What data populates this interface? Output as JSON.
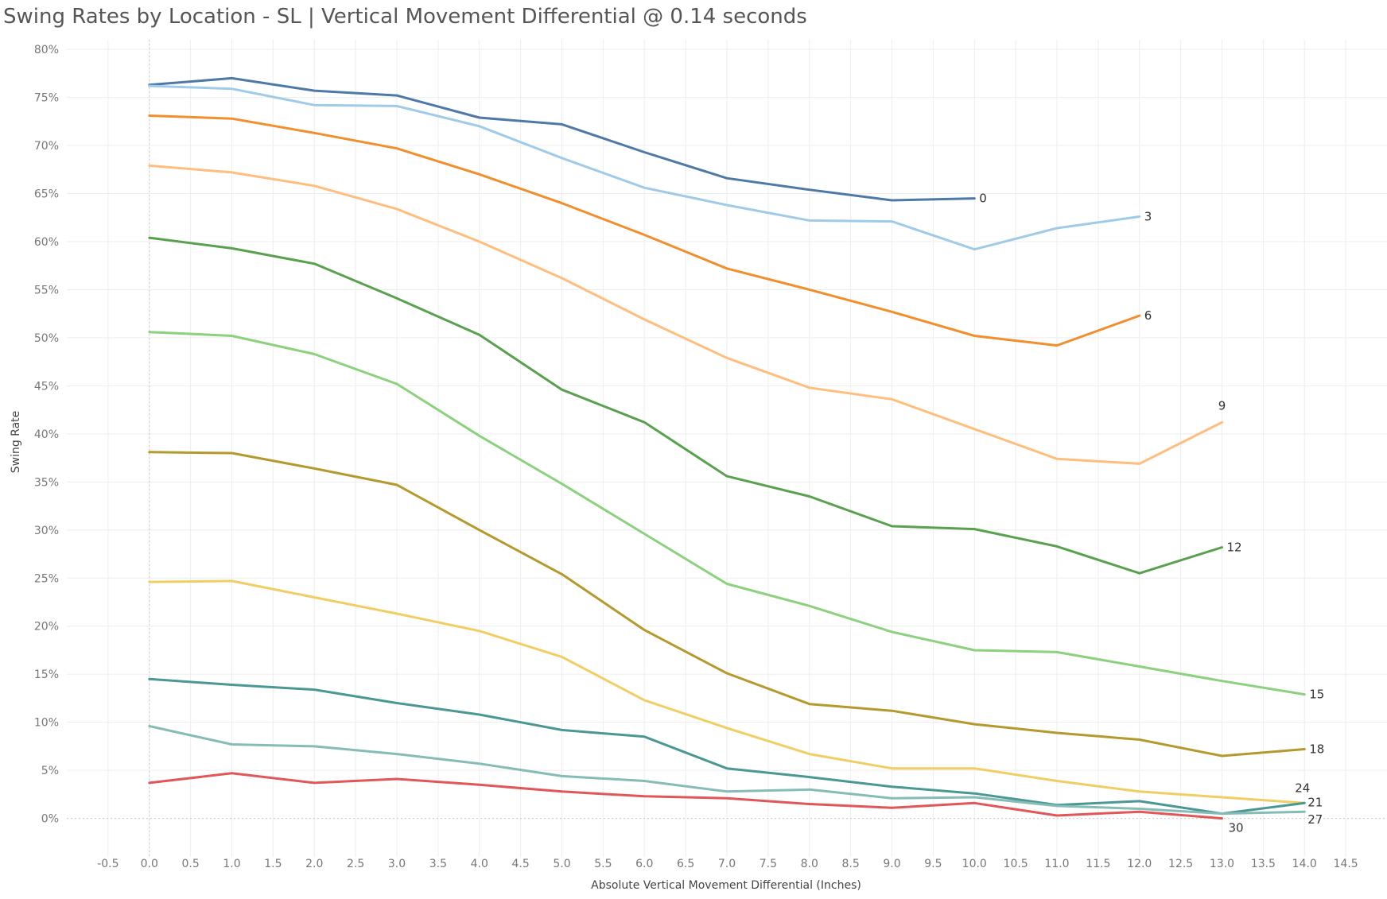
{
  "chart_data": {
    "type": "line",
    "title": "Swing Rates by Location - SL | Vertical Movement Differential @ 0.14 seconds",
    "xlabel": "Absolute Vertical Movement Differential (Inches)",
    "ylabel": "Swing Rate",
    "xlim": [
      -1.0,
      15.0
    ],
    "ylim": [
      -4,
      81
    ],
    "x_ticks": [
      "-0.5",
      "0.0",
      "0.5",
      "1.0",
      "1.5",
      "2.0",
      "2.5",
      "3.0",
      "3.5",
      "4.0",
      "4.5",
      "5.0",
      "5.5",
      "6.0",
      "6.5",
      "7.0",
      "7.5",
      "8.0",
      "8.5",
      "9.0",
      "9.5",
      "10.0",
      "10.5",
      "11.0",
      "11.5",
      "12.0",
      "12.5",
      "13.0",
      "13.5",
      "14.0",
      "14.5"
    ],
    "y_ticks": [
      "0%",
      "5%",
      "10%",
      "15%",
      "20%",
      "25%",
      "30%",
      "35%",
      "40%",
      "45%",
      "50%",
      "55%",
      "60%",
      "65%",
      "70%",
      "75%",
      "80%"
    ],
    "grid": true,
    "series": [
      {
        "name": "0",
        "color": "#4e79a7",
        "x": [
          0,
          1,
          2,
          3,
          4,
          5,
          6,
          7,
          8,
          9,
          10
        ],
        "values": [
          76.3,
          77.0,
          75.7,
          75.2,
          72.9,
          72.2,
          69.3,
          66.6,
          65.4,
          64.3,
          64.5
        ]
      },
      {
        "name": "3",
        "color": "#a0cbe8",
        "x": [
          0,
          1,
          2,
          3,
          4,
          5,
          6,
          7,
          8,
          9,
          10,
          11,
          12
        ],
        "values": [
          76.2,
          75.9,
          74.2,
          74.1,
          72.0,
          68.7,
          65.6,
          63.8,
          62.2,
          62.1,
          59.2,
          61.4,
          62.6
        ]
      },
      {
        "name": "6",
        "color": "#f28e2b",
        "x": [
          0,
          1,
          2,
          3,
          4,
          5,
          6,
          7,
          8,
          9,
          10,
          11,
          12
        ],
        "values": [
          73.1,
          72.8,
          71.3,
          69.7,
          67.0,
          64.0,
          60.7,
          57.2,
          55.0,
          52.7,
          50.2,
          49.2,
          52.3
        ]
      },
      {
        "name": "9",
        "color": "#ffbe7d",
        "x": [
          0,
          1,
          2,
          3,
          4,
          5,
          6,
          7,
          8,
          9,
          10,
          11,
          12,
          13
        ],
        "values": [
          67.9,
          67.2,
          65.8,
          63.4,
          60.0,
          56.2,
          51.9,
          47.9,
          44.8,
          43.6,
          40.5,
          37.4,
          36.9,
          41.2
        ]
      },
      {
        "name": "12",
        "color": "#59a14f",
        "x": [
          0,
          1,
          2,
          3,
          4,
          5,
          6,
          7,
          8,
          9,
          10,
          11,
          12,
          13
        ],
        "values": [
          60.4,
          59.3,
          57.7,
          54.1,
          50.3,
          44.6,
          41.2,
          35.6,
          33.5,
          30.4,
          30.1,
          28.3,
          25.5,
          28.2
        ]
      },
      {
        "name": "15",
        "color": "#8cd17d",
        "x": [
          0,
          1,
          2,
          3,
          4,
          5,
          6,
          7,
          8,
          9,
          10,
          11,
          12,
          13,
          14
        ],
        "values": [
          50.6,
          50.2,
          48.3,
          45.2,
          39.8,
          34.8,
          29.6,
          24.4,
          22.1,
          19.4,
          17.5,
          17.3,
          15.8,
          14.3,
          12.9
        ]
      },
      {
        "name": "18",
        "color": "#b6992d",
        "x": [
          0,
          1,
          2,
          3,
          4,
          5,
          6,
          7,
          8,
          9,
          10,
          11,
          12,
          13,
          14
        ],
        "values": [
          38.1,
          38.0,
          36.4,
          34.7,
          30.0,
          25.4,
          19.6,
          15.1,
          11.9,
          11.2,
          9.8,
          8.9,
          8.2,
          6.5,
          7.2
        ]
      },
      {
        "name": "24",
        "color": "#f1ce63",
        "x": [
          0,
          1,
          2,
          3,
          4,
          5,
          6,
          7,
          8,
          9,
          10,
          11,
          12,
          13,
          14
        ],
        "values": [
          24.6,
          24.7,
          23.0,
          21.3,
          19.5,
          16.8,
          12.3,
          9.4,
          6.7,
          5.2,
          5.2,
          3.9,
          2.8,
          2.2,
          1.6
        ]
      },
      {
        "name": "21",
        "color": "#499894",
        "x": [
          0,
          1,
          2,
          3,
          4,
          5,
          6,
          7,
          8,
          9,
          10,
          11,
          12,
          13,
          14
        ],
        "values": [
          14.5,
          13.9,
          13.4,
          12.0,
          10.8,
          9.2,
          8.5,
          5.2,
          4.3,
          3.3,
          2.6,
          1.4,
          1.8,
          0.5,
          1.6
        ]
      },
      {
        "name": "27",
        "color": "#86bcb6",
        "x": [
          0,
          1,
          2,
          3,
          4,
          5,
          6,
          7,
          8,
          9,
          10,
          11,
          12,
          13,
          14
        ],
        "values": [
          9.6,
          7.7,
          7.5,
          6.7,
          5.7,
          4.4,
          3.9,
          2.8,
          3.0,
          2.1,
          2.2,
          1.3,
          1.0,
          0.5,
          0.7
        ]
      },
      {
        "name": "30",
        "color": "#e15759",
        "x": [
          0,
          1,
          2,
          3,
          4,
          5,
          6,
          7,
          8,
          9,
          10,
          11,
          12,
          13
        ],
        "values": [
          3.7,
          4.7,
          3.7,
          4.1,
          3.5,
          2.8,
          2.3,
          2.1,
          1.5,
          1.1,
          1.6,
          0.3,
          0.7,
          0.0
        ]
      }
    ]
  }
}
